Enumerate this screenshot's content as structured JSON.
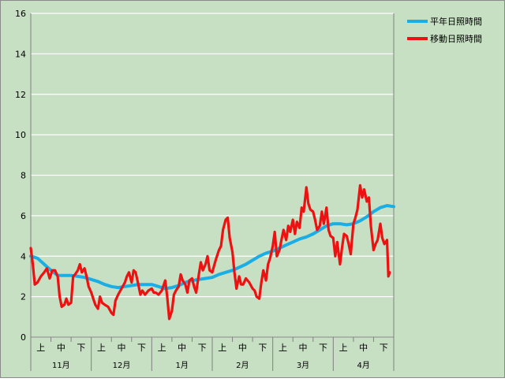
{
  "chart_data": {
    "type": "line",
    "title": "",
    "xlabel": "",
    "ylabel": "",
    "ylim": [
      0,
      16
    ],
    "y_ticks": [
      0,
      2,
      4,
      6,
      8,
      10,
      12,
      14,
      16
    ],
    "grid": "horizontal",
    "legend_position": "top-right",
    "x_range": [
      0,
      54
    ],
    "months": [
      "11月",
      "12月",
      "1月",
      "2月",
      "3月",
      "4月"
    ],
    "subperiods": [
      "上",
      "中",
      "下"
    ],
    "series": [
      {
        "name": "平年日照時間",
        "color": "#1aaee5",
        "points": [
          [
            0,
            4.0
          ],
          [
            1,
            3.9
          ],
          [
            2,
            3.6
          ],
          [
            3,
            3.3
          ],
          [
            4,
            3.05
          ],
          [
            5,
            3.05
          ],
          [
            6,
            3.05
          ],
          [
            7,
            3.0
          ],
          [
            8,
            2.95
          ],
          [
            9,
            2.85
          ],
          [
            10,
            2.75
          ],
          [
            11,
            2.6
          ],
          [
            12,
            2.5
          ],
          [
            13,
            2.45
          ],
          [
            14,
            2.5
          ],
          [
            15,
            2.55
          ],
          [
            16,
            2.6
          ],
          [
            17,
            2.6
          ],
          [
            18,
            2.6
          ],
          [
            19,
            2.5
          ],
          [
            20,
            2.4
          ],
          [
            21,
            2.45
          ],
          [
            22,
            2.55
          ],
          [
            23,
            2.7
          ],
          [
            24,
            2.8
          ],
          [
            25,
            2.85
          ],
          [
            26,
            2.9
          ],
          [
            27,
            2.95
          ],
          [
            28,
            3.1
          ],
          [
            29,
            3.2
          ],
          [
            30,
            3.3
          ],
          [
            31,
            3.45
          ],
          [
            32,
            3.6
          ],
          [
            33,
            3.8
          ],
          [
            34,
            4.0
          ],
          [
            35,
            4.15
          ],
          [
            36,
            4.25
          ],
          [
            37,
            4.4
          ],
          [
            38,
            4.55
          ],
          [
            39,
            4.7
          ],
          [
            40,
            4.85
          ],
          [
            41,
            4.95
          ],
          [
            42,
            5.1
          ],
          [
            43,
            5.3
          ],
          [
            44,
            5.5
          ],
          [
            45,
            5.6
          ],
          [
            46,
            5.6
          ],
          [
            47,
            5.55
          ],
          [
            48,
            5.6
          ],
          [
            49,
            5.75
          ],
          [
            50,
            5.95
          ],
          [
            51,
            6.2
          ],
          [
            52,
            6.4
          ],
          [
            53,
            6.5
          ],
          [
            54,
            6.45
          ]
        ]
      },
      {
        "name": "移動日照時間",
        "color": "#ee1111",
        "points": [
          [
            0,
            4.4
          ],
          [
            0.3,
            3.6
          ],
          [
            0.6,
            2.6
          ],
          [
            1,
            2.7
          ],
          [
            1.5,
            3.0
          ],
          [
            2,
            3.2
          ],
          [
            2.4,
            3.4
          ],
          [
            2.8,
            2.9
          ],
          [
            3.2,
            3.3
          ],
          [
            3.6,
            3.3
          ],
          [
            4,
            3.0
          ],
          [
            4.3,
            2.0
          ],
          [
            4.6,
            1.5
          ],
          [
            5,
            1.6
          ],
          [
            5.3,
            1.9
          ],
          [
            5.6,
            1.6
          ],
          [
            6,
            1.7
          ],
          [
            6.3,
            3.0
          ],
          [
            6.6,
            3.1
          ],
          [
            7,
            3.3
          ],
          [
            7.3,
            3.6
          ],
          [
            7.6,
            3.2
          ],
          [
            8,
            3.4
          ],
          [
            8.3,
            3.0
          ],
          [
            8.6,
            2.5
          ],
          [
            9,
            2.2
          ],
          [
            9.3,
            1.9
          ],
          [
            9.6,
            1.6
          ],
          [
            10,
            1.4
          ],
          [
            10.3,
            2.0
          ],
          [
            10.6,
            1.7
          ],
          [
            11,
            1.6
          ],
          [
            11.5,
            1.5
          ],
          [
            12,
            1.2
          ],
          [
            12.3,
            1.1
          ],
          [
            12.6,
            1.8
          ],
          [
            13,
            2.1
          ],
          [
            13.5,
            2.4
          ],
          [
            14,
            2.7
          ],
          [
            14.3,
            3.0
          ],
          [
            14.6,
            3.2
          ],
          [
            15,
            2.7
          ],
          [
            15.3,
            3.3
          ],
          [
            15.6,
            3.2
          ],
          [
            16,
            2.6
          ],
          [
            16.3,
            2.1
          ],
          [
            16.6,
            2.3
          ],
          [
            17,
            2.1
          ],
          [
            17.5,
            2.3
          ],
          [
            18,
            2.4
          ],
          [
            18.3,
            2.2
          ],
          [
            18.6,
            2.2
          ],
          [
            19,
            2.1
          ],
          [
            19.5,
            2.3
          ],
          [
            20,
            2.8
          ],
          [
            20.3,
            2.0
          ],
          [
            20.6,
            0.9
          ],
          [
            21,
            1.3
          ],
          [
            21.3,
            2.1
          ],
          [
            21.6,
            2.3
          ],
          [
            22,
            2.5
          ],
          [
            22.3,
            3.1
          ],
          [
            22.6,
            2.8
          ],
          [
            23,
            2.6
          ],
          [
            23.3,
            2.2
          ],
          [
            23.6,
            2.8
          ],
          [
            24,
            2.9
          ],
          [
            24.3,
            2.5
          ],
          [
            24.6,
            2.2
          ],
          [
            25,
            3.1
          ],
          [
            25.3,
            3.7
          ],
          [
            25.6,
            3.3
          ],
          [
            26,
            3.6
          ],
          [
            26.3,
            4.0
          ],
          [
            26.6,
            3.3
          ],
          [
            27,
            3.2
          ],
          [
            27.5,
            3.8
          ],
          [
            28,
            4.3
          ],
          [
            28.3,
            4.5
          ],
          [
            28.6,
            5.3
          ],
          [
            29,
            5.8
          ],
          [
            29.3,
            5.9
          ],
          [
            29.6,
            4.9
          ],
          [
            30,
            4.2
          ],
          [
            30.3,
            3.2
          ],
          [
            30.6,
            2.4
          ],
          [
            31,
            3.0
          ],
          [
            31.3,
            2.6
          ],
          [
            31.6,
            2.6
          ],
          [
            32,
            2.9
          ],
          [
            32.5,
            2.7
          ],
          [
            33,
            2.4
          ],
          [
            33.3,
            2.3
          ],
          [
            33.6,
            2.0
          ],
          [
            34,
            1.9
          ],
          [
            34.3,
            2.7
          ],
          [
            34.6,
            3.3
          ],
          [
            35,
            2.8
          ],
          [
            35.3,
            3.6
          ],
          [
            35.6,
            3.9
          ],
          [
            36,
            4.5
          ],
          [
            36.3,
            5.2
          ],
          [
            36.6,
            4.0
          ],
          [
            37,
            4.3
          ],
          [
            37.3,
            4.8
          ],
          [
            37.6,
            5.3
          ],
          [
            38,
            4.8
          ],
          [
            38.3,
            5.5
          ],
          [
            38.6,
            5.2
          ],
          [
            39,
            5.8
          ],
          [
            39.3,
            5.1
          ],
          [
            39.6,
            5.7
          ],
          [
            40,
            5.4
          ],
          [
            40.3,
            6.4
          ],
          [
            40.6,
            6.2
          ],
          [
            41,
            7.4
          ],
          [
            41.3,
            6.6
          ],
          [
            41.6,
            6.3
          ],
          [
            42,
            6.2
          ],
          [
            42.3,
            5.8
          ],
          [
            42.6,
            5.3
          ],
          [
            43,
            5.5
          ],
          [
            43.3,
            6.2
          ],
          [
            43.6,
            5.6
          ],
          [
            44,
            6.4
          ],
          [
            44.3,
            5.3
          ],
          [
            44.6,
            5.0
          ],
          [
            45,
            4.9
          ],
          [
            45.3,
            4.0
          ],
          [
            45.6,
            4.7
          ],
          [
            46,
            3.6
          ],
          [
            46.3,
            4.4
          ],
          [
            46.6,
            5.1
          ],
          [
            47,
            5.0
          ],
          [
            47.3,
            4.6
          ],
          [
            47.6,
            4.1
          ],
          [
            48,
            5.6
          ],
          [
            48.3,
            5.9
          ],
          [
            48.6,
            6.3
          ],
          [
            49,
            7.5
          ],
          [
            49.3,
            6.9
          ],
          [
            49.6,
            7.3
          ],
          [
            50,
            6.7
          ],
          [
            50.3,
            6.9
          ],
          [
            50.6,
            5.5
          ],
          [
            51,
            4.3
          ],
          [
            51.3,
            4.6
          ],
          [
            51.6,
            4.8
          ],
          [
            52,
            5.6
          ],
          [
            52.3,
            4.9
          ],
          [
            52.6,
            4.6
          ],
          [
            53,
            4.8
          ],
          [
            53.2,
            3.0
          ],
          [
            53.4,
            3.2
          ]
        ]
      }
    ]
  }
}
